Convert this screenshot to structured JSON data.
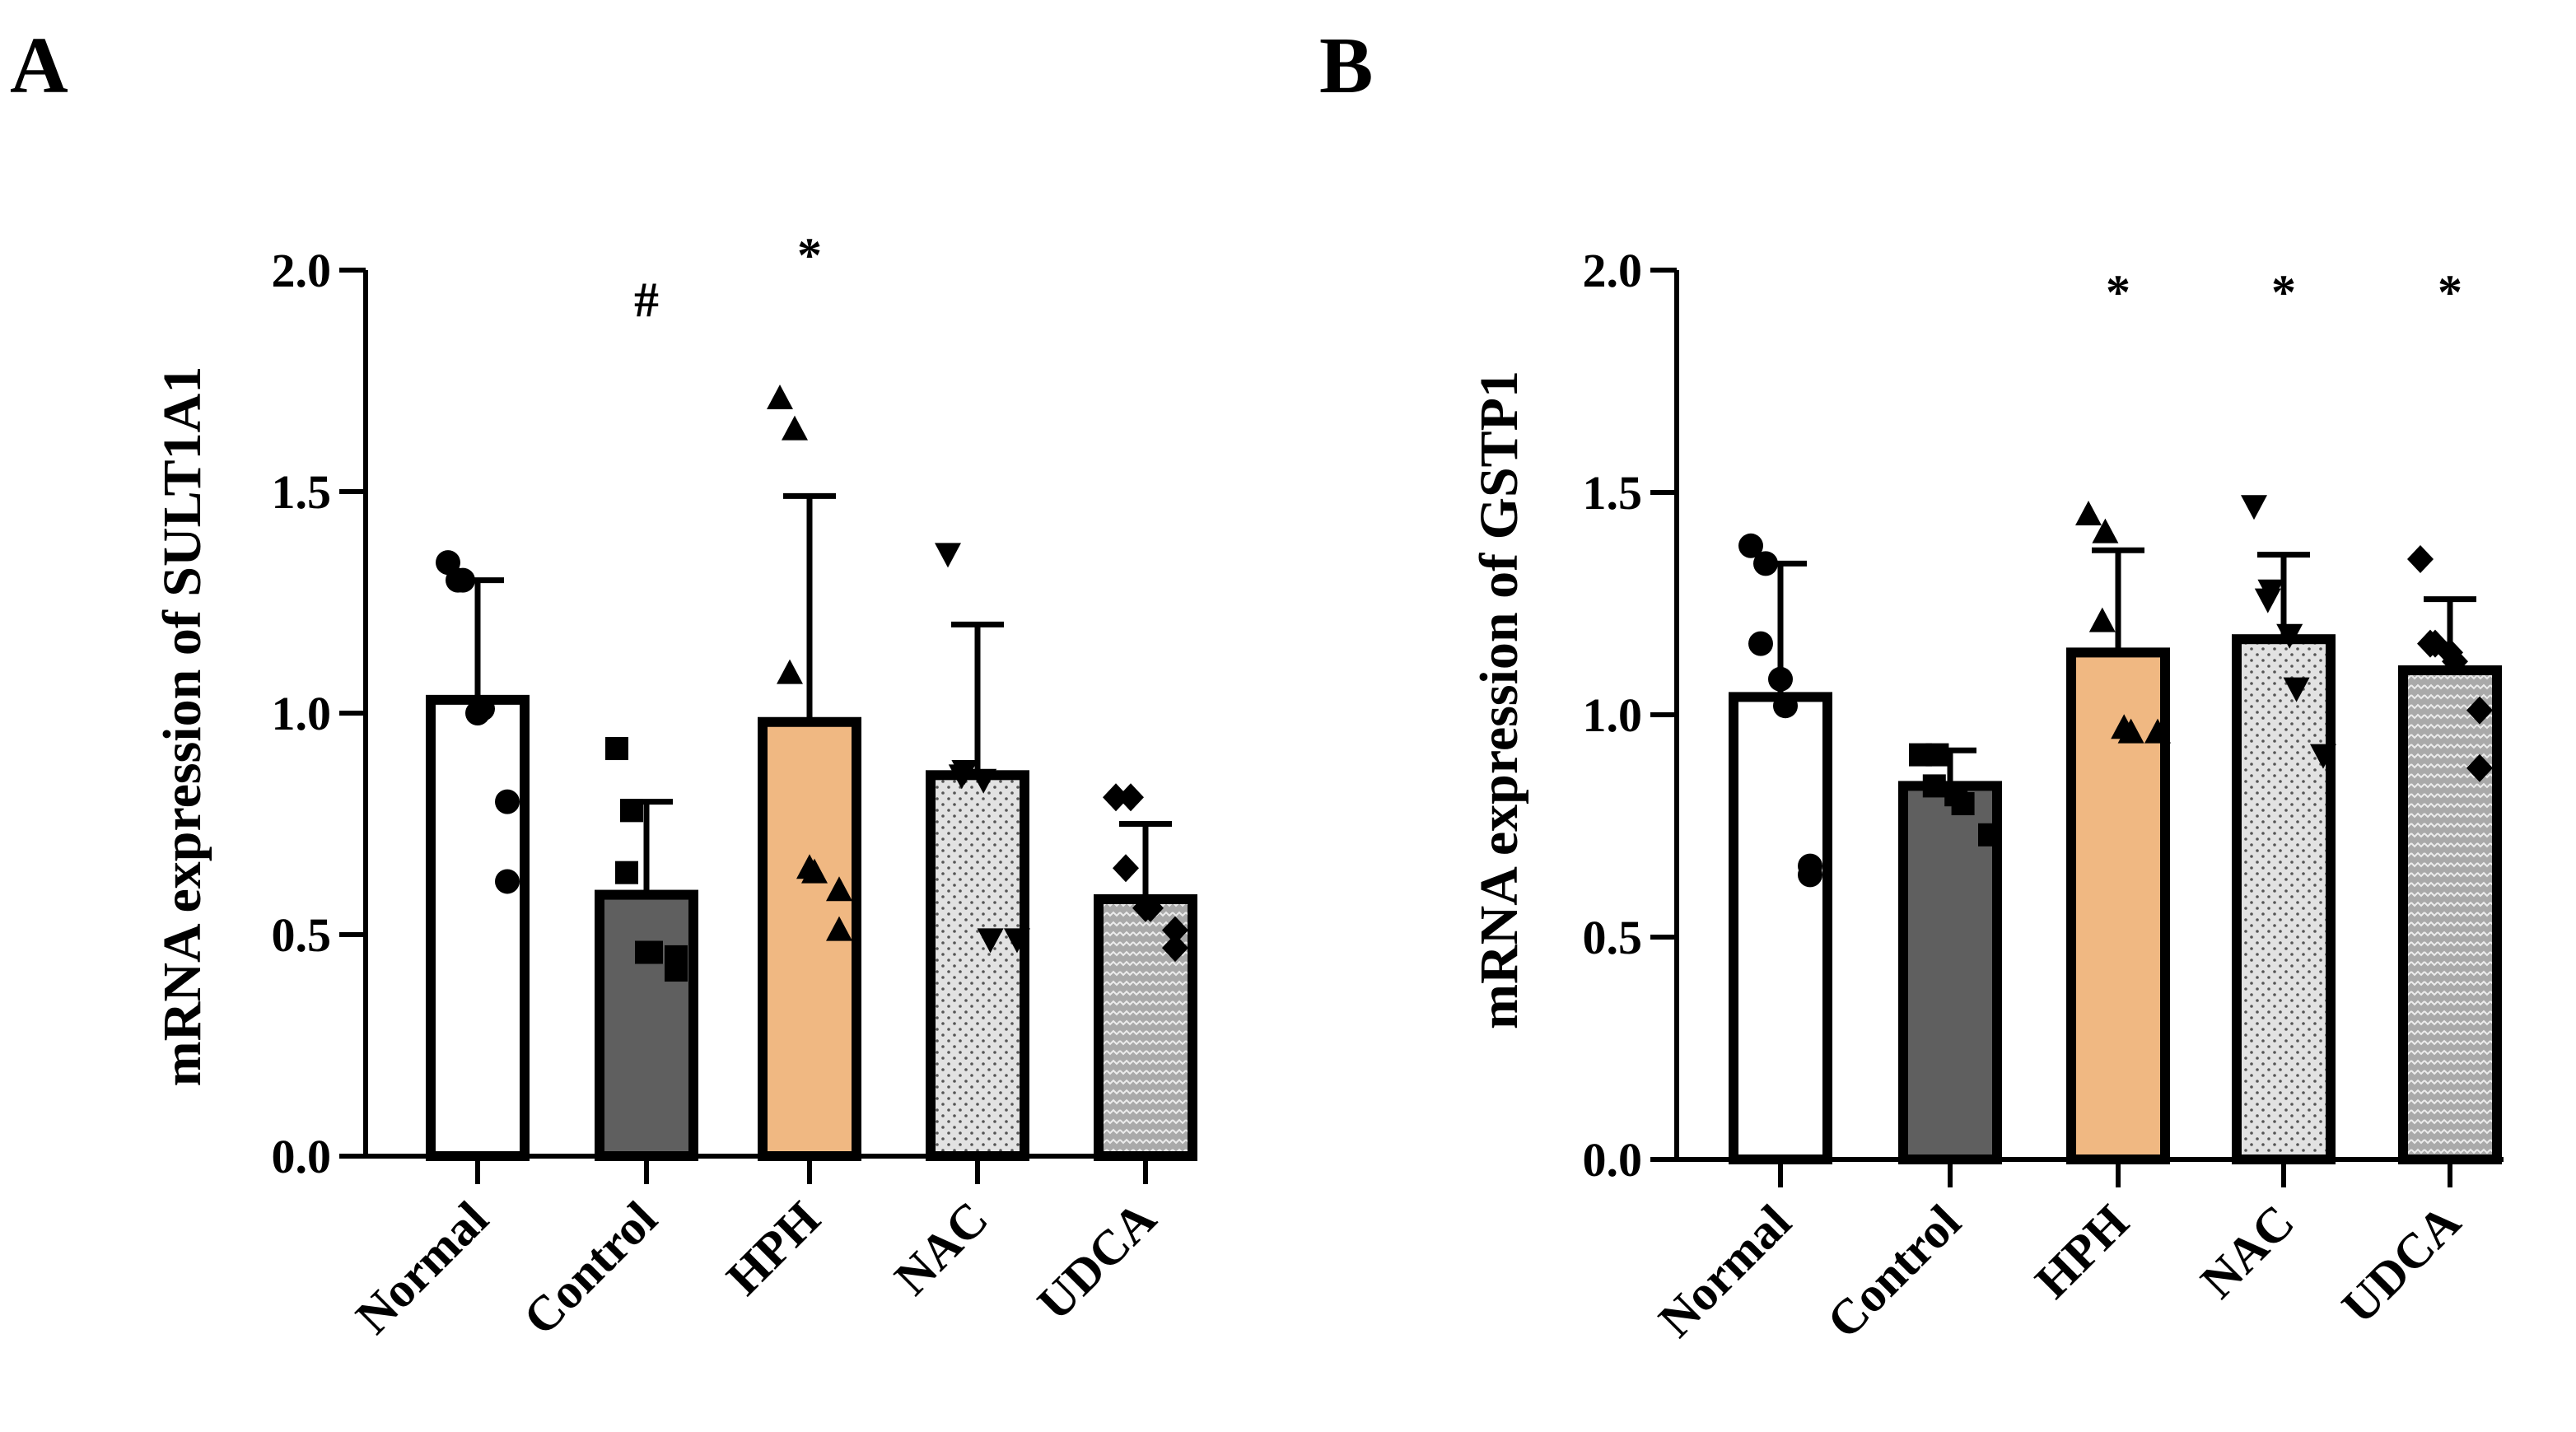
{
  "chart_data": [
    {
      "panel": "A",
      "type": "bar",
      "ylabel": "mRNA expression of SULT1A1",
      "xlabel": "",
      "ylim": [
        0,
        2.0
      ],
      "yticks": [
        "0.0",
        "0.5",
        "1.0",
        "1.5",
        "2.0"
      ],
      "categories": [
        "Normal",
        "Control",
        "HPH",
        "NAC",
        "UDCA"
      ],
      "values": [
        1.03,
        0.59,
        0.98,
        0.86,
        0.58
      ],
      "sd": [
        0.27,
        0.21,
        0.51,
        0.34,
        0.17
      ],
      "annotations": [
        "",
        "#",
        "*",
        "",
        ""
      ],
      "points": [
        [
          1.34,
          1.3,
          1.3,
          1.0,
          1.01,
          0.8,
          0.62
        ],
        [
          0.92,
          0.78,
          0.64,
          0.46,
          0.46,
          0.45,
          0.42
        ],
        [
          1.71,
          1.64,
          1.09,
          0.65,
          0.64,
          0.6,
          0.51
        ],
        [
          1.36,
          0.87,
          0.86,
          0.85,
          0.49,
          0.49
        ],
        [
          0.81,
          0.81,
          0.65,
          0.56,
          0.56,
          0.51,
          0.47
        ]
      ]
    },
    {
      "panel": "B",
      "type": "bar",
      "ylabel": "mRNA expression of GSTP1",
      "xlabel": "",
      "ylim": [
        0,
        2.0
      ],
      "yticks": [
        "0.0",
        "0.5",
        "1.0",
        "1.5",
        "2.0"
      ],
      "categories": [
        "Normal",
        "Control",
        "HPH",
        "NAC",
        "UDCA"
      ],
      "values": [
        1.04,
        0.84,
        1.14,
        1.17,
        1.1
      ],
      "sd": [
        0.3,
        0.08,
        0.23,
        0.19,
        0.16
      ],
      "annotations": [
        "",
        "",
        "*",
        "*",
        "*"
      ],
      "points": [
        [
          1.38,
          1.34,
          1.16,
          1.08,
          1.02,
          0.66,
          0.64
        ],
        [
          0.91,
          0.91,
          0.84,
          0.82,
          0.8,
          0.73
        ],
        [
          1.45,
          1.41,
          1.21,
          0.97,
          0.96,
          0.96
        ],
        [
          1.47,
          1.28,
          1.26,
          1.18,
          1.06,
          0.91
        ],
        [
          1.35,
          1.16,
          1.16,
          1.14,
          1.12,
          1.01,
          0.88
        ]
      ]
    }
  ],
  "group_styles": [
    {
      "fill": "#ffffff",
      "pattern": "none",
      "marker": "circle"
    },
    {
      "fill": "#5f5f5f",
      "pattern": "none",
      "marker": "square"
    },
    {
      "fill": "#f0b882",
      "pattern": "none",
      "marker": "triangle-up"
    },
    {
      "fill": "#e2e2e2",
      "pattern": "dots",
      "marker": "triangle-down"
    },
    {
      "fill": "#a7a7a7",
      "pattern": "zigzag",
      "marker": "diamond"
    }
  ],
  "colors": {
    "axis": "#000000",
    "marker": "#000000"
  }
}
